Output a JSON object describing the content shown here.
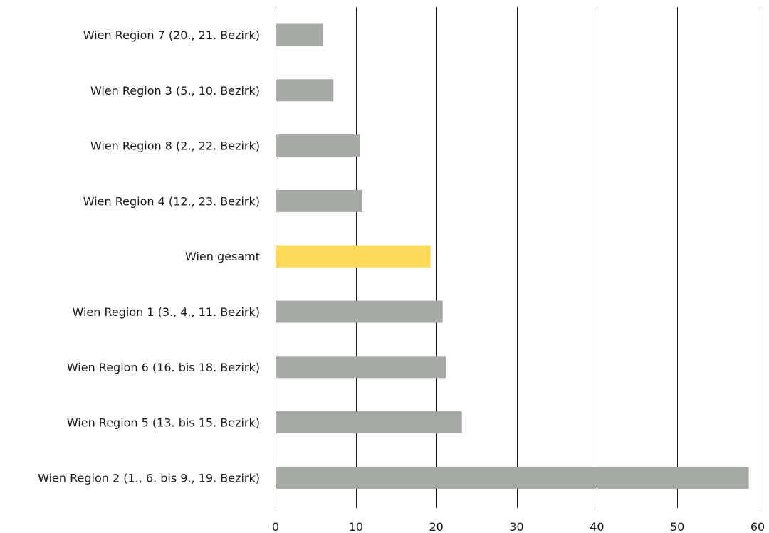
{
  "chart_data": {
    "type": "bar",
    "orientation": "horizontal",
    "categories": [
      "Wien Region 7 (20., 21. Bezirk)",
      "Wien Region 3 (5., 10. Bezirk)",
      "Wien Region 8 (2., 22. Bezirk)",
      "Wien Region 4 (12., 23. Bezirk)",
      "Wien gesamt",
      "Wien Region 1 (3., 4., 11. Bezirk)",
      "Wien Region 6 (16. bis 18. Bezirk)",
      "Wien Region 5 (13. bis 15. Bezirk)",
      "Wien Region 2 (1., 6. bis 9., 19. Bezirk)"
    ],
    "values": [
      5.9,
      7.2,
      10.5,
      10.8,
      19.3,
      20.8,
      21.2,
      23.2,
      58.9
    ],
    "highlight": "Wien gesamt",
    "xlim": [
      0,
      60
    ],
    "xticks": [
      "0",
      "10",
      "20",
      "30",
      "40",
      "50",
      "60"
    ],
    "grid": "vertical",
    "colors": {
      "bar": "#a5aaa4",
      "highlight": "#ffd958"
    }
  }
}
